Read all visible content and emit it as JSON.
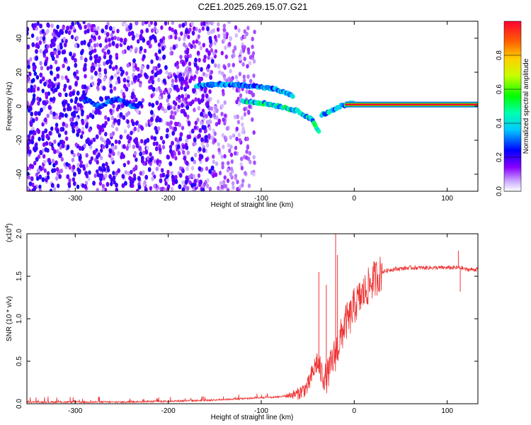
{
  "title": "C2E1.2025.269.15.07.G21",
  "chart_data": [
    {
      "type": "heatmap",
      "xlabel": "Height of straight line (km)",
      "ylabel": "Frequency (Hz)",
      "xlim": [
        -352,
        133
      ],
      "ylim": [
        -50,
        50
      ],
      "xticks": [
        -300,
        -200,
        -100,
        0,
        100
      ],
      "yticks": [
        -40,
        -20,
        0,
        20,
        40
      ],
      "colorbar": {
        "label": "Normalized spectral amplitude",
        "range": [
          0.0,
          1.0
        ],
        "ticks": [
          0.0,
          0.2,
          0.4,
          0.6,
          0.8
        ],
        "colormap": [
          "#ffffff",
          "#8a00ff",
          "#0000ff",
          "#00ffff",
          "#00ff00",
          "#ffff00",
          "#ff8000",
          "#ff0000"
        ]
      },
      "main_tone": {
        "from_x": -10,
        "to_x": 133,
        "frequency": 1,
        "amplitude": 1.0
      },
      "ridges": [
        {
          "x": [
            -120,
            -100,
            -80,
            -60,
            -45,
            -38
          ],
          "y": [
            3,
            2,
            0,
            -3,
            -8,
            -15
          ],
          "amplitude": 0.45
        },
        {
          "x": [
            -170,
            -140,
            -110,
            -85,
            -65
          ],
          "y": [
            12,
            13,
            12,
            10,
            6
          ],
          "amplitude": 0.35
        },
        {
          "x": [
            -35,
            -25,
            -15,
            -8,
            0
          ],
          "y": [
            -5,
            -3,
            0,
            1,
            2
          ],
          "amplitude": 0.4
        }
      ]
    },
    {
      "type": "line",
      "xlabel": "Height of straight line (km)",
      "ylabel": "SNR (10 * v/v)",
      "y_multiplier": "(x10",
      "y_multiplier_exp": "4",
      "xlim": [
        -352,
        133
      ],
      "ylim": [
        0.0,
        2.0
      ],
      "xticks": [
        -300,
        -200,
        -100,
        0,
        100
      ],
      "yticks": [
        "0.0",
        "0.5",
        "1.0",
        "1.5",
        "2.0"
      ],
      "line_color": "#ee3333",
      "series": [
        {
          "x": [
            -352,
            -300,
            -250,
            -200,
            -160,
            -140,
            -120,
            -100,
            -80,
            -60,
            -50,
            -45,
            -40,
            -35,
            -30,
            -25,
            -20,
            -15,
            -10,
            -5,
            0,
            10,
            20,
            30,
            40,
            60,
            80,
            100,
            110,
            115,
            120,
            133
          ],
          "y": [
            0.02,
            0.02,
            0.02,
            0.03,
            0.04,
            0.05,
            0.06,
            0.07,
            0.08,
            0.12,
            0.2,
            0.35,
            0.5,
            0.35,
            0.3,
            0.45,
            0.6,
            0.75,
            0.95,
            1.0,
            1.15,
            1.3,
            1.45,
            1.55,
            1.58,
            1.6,
            1.6,
            1.6,
            1.6,
            1.6,
            1.58,
            1.58
          ],
          "spikes": [
            {
              "x": -38,
              "y": 1.55
            },
            {
              "x": -30,
              "y": 1.4
            },
            {
              "x": -20,
              "y": 2.0
            },
            {
              "x": -18,
              "y": 1.75
            },
            {
              "x": 112,
              "y": 1.8
            },
            {
              "x": 114,
              "y": 1.32
            }
          ]
        }
      ]
    }
  ]
}
